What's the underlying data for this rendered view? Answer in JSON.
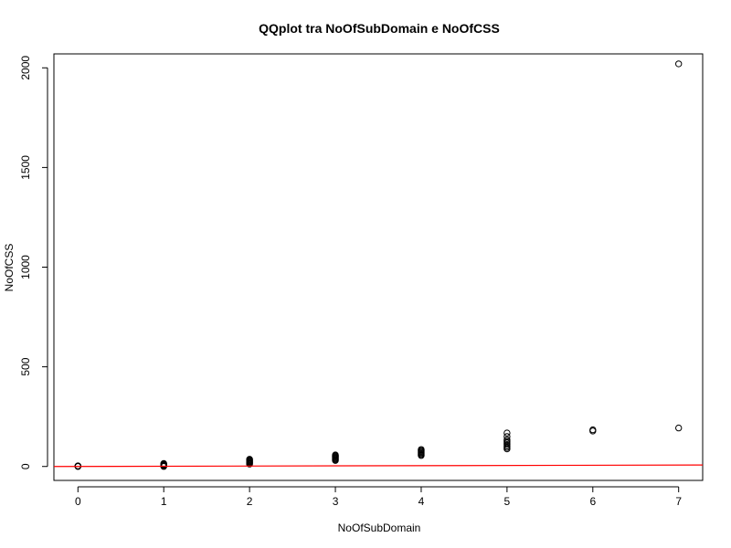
{
  "chart_data": {
    "type": "scatter",
    "title": "QQplot tra NoOfSubDomain e NoOfCSS",
    "xlabel": "NoOfSubDomain",
    "ylabel": "NoOfCSS",
    "xlim": [
      -0.28,
      7.28
    ],
    "ylim": [
      -70,
      2070
    ],
    "xticks": [
      0,
      1,
      2,
      3,
      4,
      5,
      6,
      7
    ],
    "yticks": [
      0,
      500,
      1000,
      1500,
      2000
    ],
    "grid": false,
    "points": [
      {
        "x": 0,
        "y": 0
      },
      {
        "x": 0,
        "y": 1
      },
      {
        "x": 0,
        "y": 2
      },
      {
        "x": 0,
        "y": 3
      },
      {
        "x": 1,
        "y": 0
      },
      {
        "x": 1,
        "y": 3
      },
      {
        "x": 1,
        "y": 6
      },
      {
        "x": 1,
        "y": 9
      },
      {
        "x": 1,
        "y": 12
      },
      {
        "x": 1,
        "y": 15
      },
      {
        "x": 2,
        "y": 12
      },
      {
        "x": 2,
        "y": 16
      },
      {
        "x": 2,
        "y": 20
      },
      {
        "x": 2,
        "y": 24
      },
      {
        "x": 2,
        "y": 28
      },
      {
        "x": 2,
        "y": 32
      },
      {
        "x": 2,
        "y": 36
      },
      {
        "x": 3,
        "y": 30
      },
      {
        "x": 3,
        "y": 34
      },
      {
        "x": 3,
        "y": 38
      },
      {
        "x": 3,
        "y": 42
      },
      {
        "x": 3,
        "y": 46
      },
      {
        "x": 3,
        "y": 50
      },
      {
        "x": 3,
        "y": 54
      },
      {
        "x": 3,
        "y": 58
      },
      {
        "x": 4,
        "y": 55
      },
      {
        "x": 4,
        "y": 60
      },
      {
        "x": 4,
        "y": 65
      },
      {
        "x": 4,
        "y": 70
      },
      {
        "x": 4,
        "y": 75
      },
      {
        "x": 4,
        "y": 80
      },
      {
        "x": 4,
        "y": 85
      },
      {
        "x": 5,
        "y": 88
      },
      {
        "x": 5,
        "y": 95
      },
      {
        "x": 5,
        "y": 102
      },
      {
        "x": 5,
        "y": 110
      },
      {
        "x": 5,
        "y": 118
      },
      {
        "x": 5,
        "y": 126
      },
      {
        "x": 5,
        "y": 134
      },
      {
        "x": 5,
        "y": 150
      },
      {
        "x": 5,
        "y": 168
      },
      {
        "x": 6,
        "y": 178
      },
      {
        "x": 6,
        "y": 184
      },
      {
        "x": 7,
        "y": 193
      },
      {
        "x": 7,
        "y": 2020
      }
    ],
    "reference_line": {
      "x": [
        -0.28,
        7.28
      ],
      "y": [
        -0.28,
        7.28
      ],
      "color": "#ff0000"
    },
    "point_color": "#000000"
  }
}
